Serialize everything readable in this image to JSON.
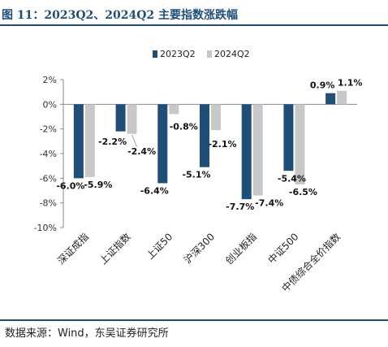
{
  "title": "图 11：2023Q2、2024Q2 主要指数涨跌幅",
  "source": "数据来源：Wind，东吴证券研究所",
  "colors": {
    "series_2023": "#1f4e79",
    "series_2024": "#c8c8c8",
    "accent": "#1f4e79"
  },
  "chart_data": {
    "type": "bar",
    "categories": [
      "深证成指",
      "上证指数",
      "上证50",
      "沪深300",
      "创业板指",
      "中证500",
      "中债综合全价指数"
    ],
    "series": [
      {
        "name": "2023Q2",
        "values": [
          -6.0,
          -2.2,
          -6.4,
          -5.1,
          -7.7,
          -5.4,
          0.9
        ],
        "labels": [
          "-6.0%",
          "-2.2%",
          "-6.4%",
          "-5.1%",
          "-7.7%",
          "-5.4%",
          "0.9%"
        ]
      },
      {
        "name": "2024Q2",
        "values": [
          -5.9,
          -2.4,
          -0.8,
          -2.1,
          -7.4,
          -6.5,
          1.1
        ],
        "labels": [
          "-5.9%",
          "-2.4%",
          "-0.8%",
          "-2.1%",
          "-7.4%",
          "-6.5%",
          "1.1%"
        ]
      }
    ],
    "ylim": [
      -10,
      2
    ],
    "yticks": [
      2,
      0,
      -2,
      -4,
      -6,
      -8,
      -10
    ],
    "ytick_labels": [
      "2%",
      "0%",
      "-2%",
      "-4%",
      "-6%",
      "-8%",
      "-10%"
    ],
    "grid": false,
    "legend": "top-center",
    "xlabel": "",
    "ylabel": ""
  }
}
